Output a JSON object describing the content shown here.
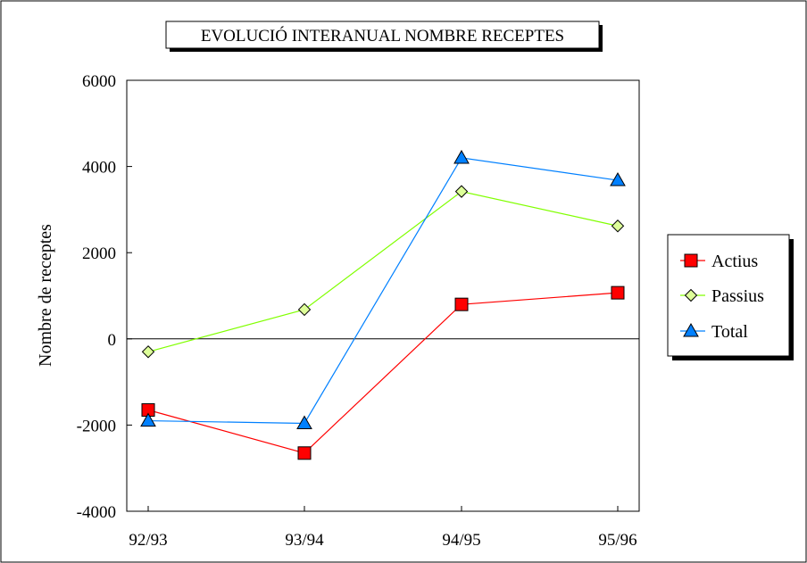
{
  "chart_data": {
    "type": "line",
    "title": "EVOLUCIÓ INTERANUAL NOMBRE RECEPTES",
    "xlabel": "",
    "ylabel": "Nombre de receptes",
    "categories": [
      "92/93",
      "93/94",
      "94/95",
      "95/96"
    ],
    "ylim": [
      -4000,
      6000
    ],
    "yticks": [
      -4000,
      -2000,
      0,
      2000,
      4000,
      6000
    ],
    "zero_line": true,
    "grid": false,
    "legend_position": "right",
    "series": [
      {
        "name": "Actius",
        "values": [
          -1650,
          -2650,
          800,
          1070
        ],
        "color": "#ff0000",
        "marker": "square"
      },
      {
        "name": "Passius",
        "values": [
          -300,
          680,
          3420,
          2620
        ],
        "color": "#80ff00",
        "marker": "diamond"
      },
      {
        "name": "Total",
        "values": [
          -1900,
          -1960,
          4200,
          3680
        ],
        "color": "#0080ff",
        "marker": "triangle"
      }
    ]
  }
}
